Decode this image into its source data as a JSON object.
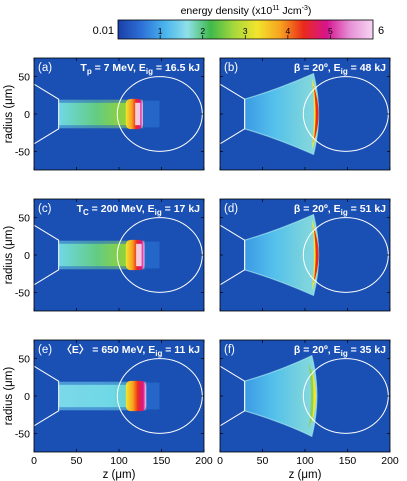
{
  "colorbar": {
    "label_main": "energy density (x10",
    "label_exp": "11",
    "label_unit": " Jcm",
    "label_unit_exp": "-3",
    "label_close": ")",
    "min_label": "0.01",
    "max_label": "6",
    "tick_labels": [
      "1",
      "2",
      "3",
      "4",
      "5"
    ],
    "scale": [
      0.01,
      6
    ],
    "colors": [
      "#1a3fa8",
      "#2d6fd6",
      "#49b3ee",
      "#8fe0e8",
      "#3fb94a",
      "#a6d83c",
      "#f2e52e",
      "#f7a21f",
      "#ea2a1c",
      "#d6148e",
      "#e690d6",
      "#f7d6f2"
    ]
  },
  "axes_common": {
    "ylabel": "radius (μm)",
    "xlabel": "z (μm)",
    "xlim": [
      0,
      200
    ],
    "ylim": [
      -75,
      75
    ],
    "xticks": [
      "0",
      "50",
      "100",
      "150",
      "200"
    ],
    "yticks": [
      "50",
      "0",
      "-50"
    ],
    "background_color": "#1a4fb4",
    "outline_color": "#ffffff"
  },
  "panels": [
    {
      "id": "a",
      "tag": "(a)",
      "text": "T",
      "sub": "p",
      "rest": " = 7 MeV, E",
      "sub2": "ig",
      "rest2": " = 16.5 kJ",
      "kind": "beam",
      "beam_end": 128,
      "hot_z": 118,
      "energy_kJ": 16.5,
      "show_ylabel": true,
      "show_xlabel": false
    },
    {
      "id": "b",
      "tag": "(b)",
      "text": "β = 20º, E",
      "sub": "ig",
      "rest": " = 48 kJ",
      "sub2": "",
      "rest2": "",
      "kind": "cone",
      "hot_z": 110,
      "energy_kJ": 48,
      "show_ylabel": false,
      "show_xlabel": false
    },
    {
      "id": "c",
      "tag": "(c)",
      "text": "T",
      "sub": "C",
      "rest": " = 200 MeV, E",
      "sub2": "ig",
      "rest2": " = 17 kJ",
      "kind": "beam",
      "beam_end": 130,
      "hot_z": 118,
      "energy_kJ": 17,
      "show_ylabel": true,
      "show_xlabel": false
    },
    {
      "id": "d",
      "tag": "(d)",
      "text": "β = 20º, E",
      "sub": "ig",
      "rest": " = 51 kJ",
      "sub2": "",
      "rest2": "",
      "kind": "cone",
      "hot_z": 110,
      "energy_kJ": 51,
      "show_ylabel": false,
      "show_xlabel": false
    },
    {
      "id": "e",
      "tag": "(e)",
      "text": "〈E〉 = 650 MeV, E",
      "sub": "ig",
      "rest": " = 11 kJ",
      "sub2": "",
      "rest2": "",
      "kind": "beam",
      "beam_end": 132,
      "hot_z": 118,
      "energy_kJ": 11,
      "show_ylabel": true,
      "show_xlabel": true
    },
    {
      "id": "f",
      "tag": "(f)",
      "text": "β = 20º, E",
      "sub": "ig",
      "rest": " = 35 kJ",
      "sub2": "",
      "rest2": "",
      "kind": "cone",
      "hot_z": 108,
      "energy_kJ": 35,
      "show_ylabel": false,
      "show_xlabel": true
    }
  ],
  "chart_data": {
    "type": "heatmap",
    "title": "",
    "colorbar_label": "energy density (x10^11 Jcm^-3)",
    "colorbar_range": [
      0.01,
      6
    ],
    "xlabel": "z (μm)",
    "ylabel": "radius (μm)",
    "xlim": [
      0,
      200
    ],
    "ylim": [
      -75,
      75
    ],
    "panels": [
      {
        "label": "(a)",
        "annotation": "Tp = 7 MeV, Eig = 16.5 kJ",
        "Eig_kJ": 16.5
      },
      {
        "label": "(b)",
        "annotation": "β = 20º, Eig = 48 kJ",
        "Eig_kJ": 48
      },
      {
        "label": "(c)",
        "annotation": "TC = 200 MeV, Eig = 17 kJ",
        "Eig_kJ": 17
      },
      {
        "label": "(d)",
        "annotation": "β = 20º, Eig = 51 kJ",
        "Eig_kJ": 51
      },
      {
        "label": "(e)",
        "annotation": "〈E〉 = 650 MeV, Eig = 11 kJ",
        "Eig_kJ": 11
      },
      {
        "label": "(f)",
        "annotation": "β = 20º, Eig = 35 kJ",
        "Eig_kJ": 35
      }
    ]
  }
}
